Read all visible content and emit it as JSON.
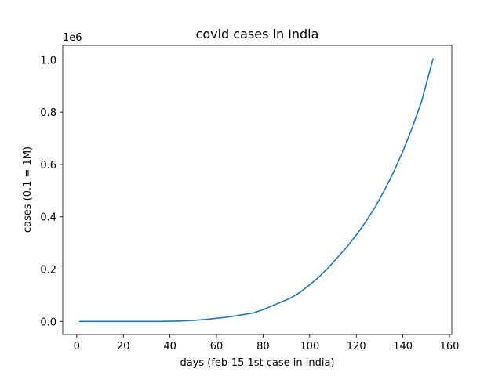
{
  "chart_data": {
    "type": "line",
    "title": "covid cases in India",
    "xlabel": "days (feb-15 1st case in india)",
    "ylabel": "cases (0.1 = 1M)",
    "offset_text": "1e6",
    "xlim": [
      -6,
      161
    ],
    "ylim": [
      -50000,
      1055000
    ],
    "xticks": [
      0,
      20,
      40,
      60,
      80,
      100,
      120,
      140,
      160
    ],
    "yticks": [
      0,
      0.2,
      0.4,
      0.6,
      0.8,
      1.0
    ],
    "ytick_scale": 1000000,
    "grid": false,
    "series": [
      {
        "color": "#1f77b4",
        "x": [
          1,
          10,
          20,
          30,
          36,
          40,
          44,
          48,
          52,
          56,
          60,
          64,
          68,
          72,
          76,
          80,
          84,
          88,
          92,
          96,
          100,
          104,
          108,
          112,
          116,
          120,
          124,
          128,
          132,
          136,
          140,
          144,
          148,
          153
        ],
        "y": [
          0,
          0,
          0,
          0,
          0,
          500,
          1500,
          3000,
          5000,
          8000,
          12000,
          16000,
          21000,
          27000,
          33000,
          45000,
          60000,
          75000,
          90000,
          112000,
          140000,
          170000,
          205000,
          245000,
          285000,
          330000,
          380000,
          435000,
          500000,
          570000,
          650000,
          740000,
          840000,
          1005000
        ]
      }
    ]
  }
}
